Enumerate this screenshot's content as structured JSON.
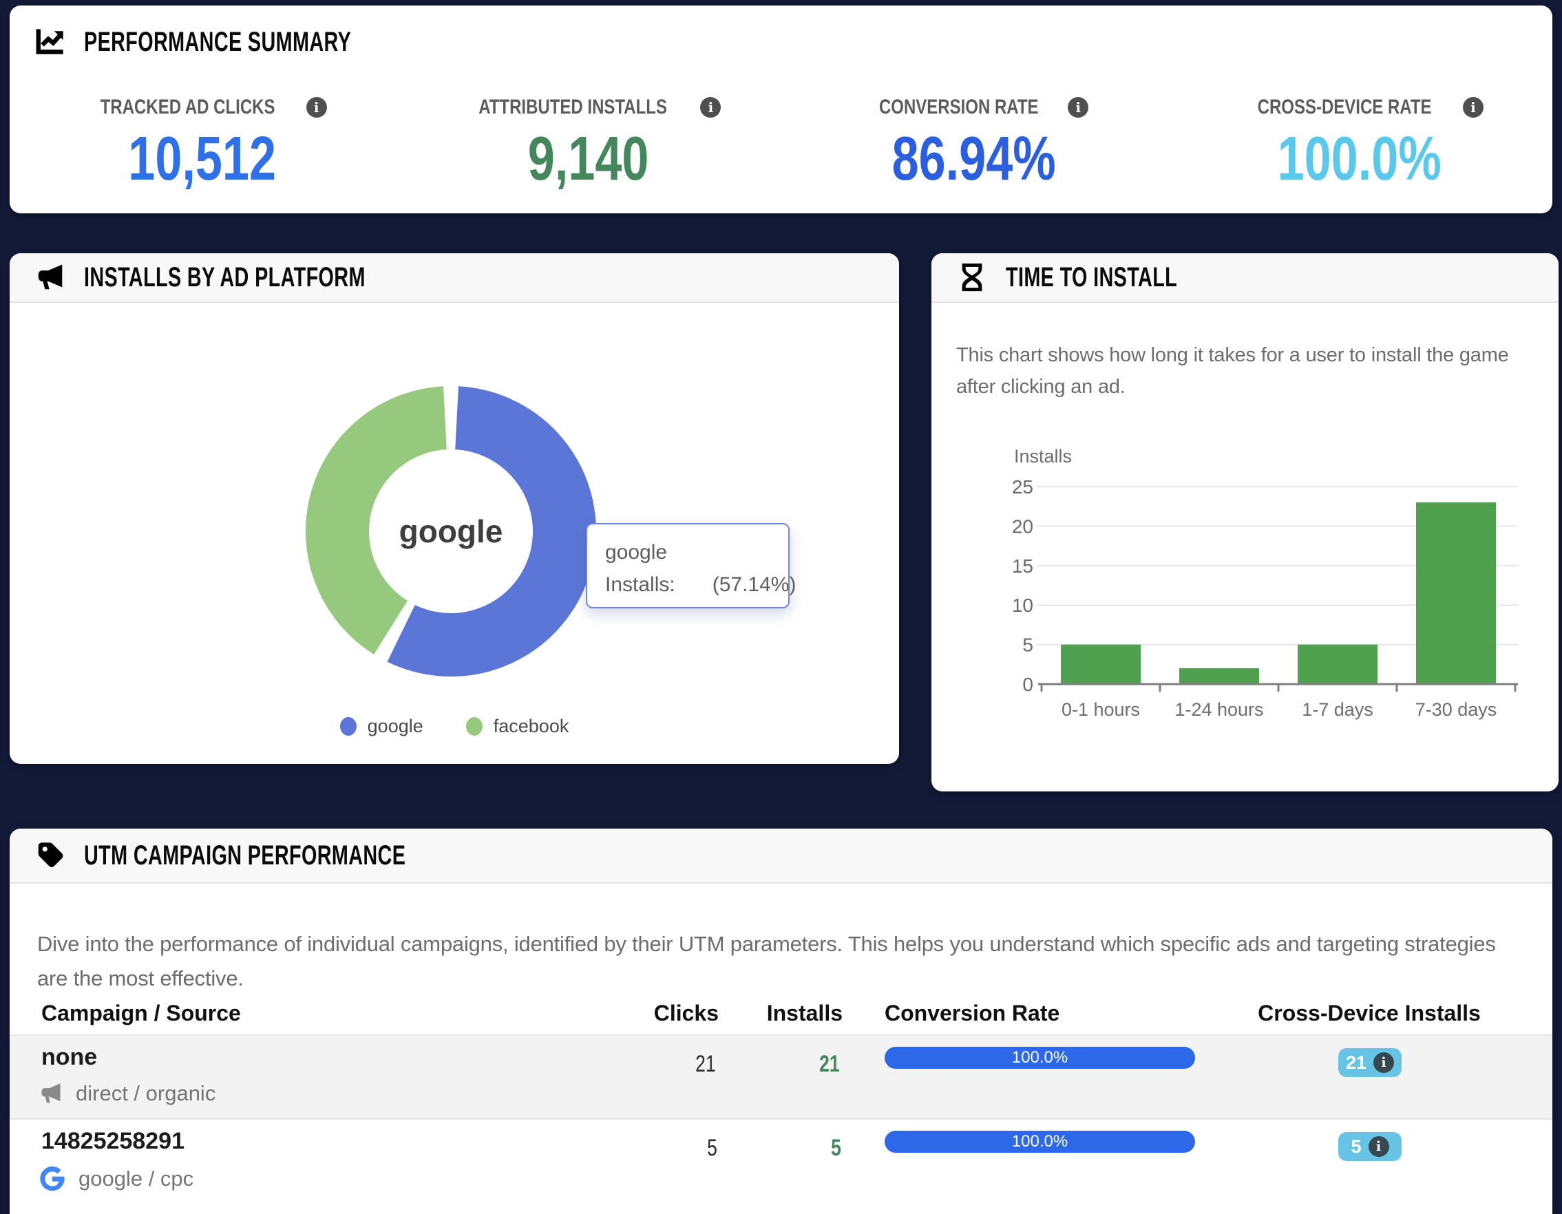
{
  "theme": {
    "page_bg": "#131A38",
    "card_bg": "#FFFFFF",
    "header_strip_bg": "#F8F8F9"
  },
  "summary": {
    "icon": "chart-line-icon",
    "title": "PERFORMANCE SUMMARY",
    "metrics": [
      {
        "label": "TRACKED AD CLICKS",
        "value": "10,512",
        "color": "#2E70E8",
        "info_icon": "info-icon"
      },
      {
        "label": "ATTRIBUTED INSTALLS",
        "value": "9,140",
        "color": "#44875A",
        "info_icon": "info-icon"
      },
      {
        "label": "CONVERSION RATE",
        "value": "86.94%",
        "color": "#2C5FE0",
        "info_icon": "info-icon"
      },
      {
        "label": "CROSS-DEVICE RATE",
        "value": "100.0%",
        "color": "#5AC8EB",
        "info_icon": "info-icon"
      }
    ]
  },
  "platform": {
    "icon": "megaphone-icon",
    "title": "INSTALLS BY AD PLATFORM",
    "center_label": "google",
    "tooltip": {
      "line1": "google",
      "line2_label": "Installs:",
      "line2_value": "(57.14%)"
    }
  },
  "time": {
    "icon": "hourglass-icon",
    "title": "TIME TO INSTALL",
    "description": "This chart shows how long it takes for a user to install the game after clicking an ad."
  },
  "utm": {
    "icon": "tag-icon",
    "title": "UTM CAMPAIGN PERFORMANCE",
    "description": "Dive into the performance of individual campaigns, identified by their UTM parameters. This helps you understand which specific ads and targeting strategies are the most effective.",
    "columns": [
      "Campaign / Source",
      "Clicks",
      "Installs",
      "Conversion Rate",
      "Cross-Device Installs"
    ],
    "installs_color": "#44875A",
    "bar_color": "#2D68E8",
    "badge_bg": "#67C4E4",
    "rows": [
      {
        "campaign": "none",
        "source": "direct / organic",
        "source_icon": "megaphone-icon",
        "clicks": "21",
        "installs": "21",
        "conversion_rate": "100.0%",
        "cross_device_installs": "21"
      },
      {
        "campaign": "14825258291",
        "source": "google / cpc",
        "source_icon": "google-icon",
        "clicks": "5",
        "installs": "5",
        "conversion_rate": "100.0%",
        "cross_device_installs": "5"
      }
    ]
  },
  "chart_data": [
    {
      "type": "pie",
      "title": "INSTALLS BY AD PLATFORM",
      "labels": [
        "google",
        "facebook"
      ],
      "values_pct": [
        57.14,
        42.86
      ],
      "colors": [
        "#5C76D8",
        "#96C87D"
      ],
      "donut": true,
      "center_label": "google",
      "legend_position": "bottom",
      "tooltip_visible": "google — Installs: (57.14%)"
    },
    {
      "type": "bar",
      "title": "TIME TO INSTALL",
      "categories": [
        "0-1 hours",
        "1-24 hours",
        "1-7 days",
        "7-30 days"
      ],
      "values": [
        5,
        2,
        5,
        23
      ],
      "ylabel": "Installs",
      "xlabel": "",
      "ylim": [
        0,
        25
      ],
      "yticks": [
        0,
        5,
        10,
        15,
        20,
        25
      ],
      "grid": true,
      "bar_color": "#4FA14F",
      "legend_position": "none"
    }
  ]
}
